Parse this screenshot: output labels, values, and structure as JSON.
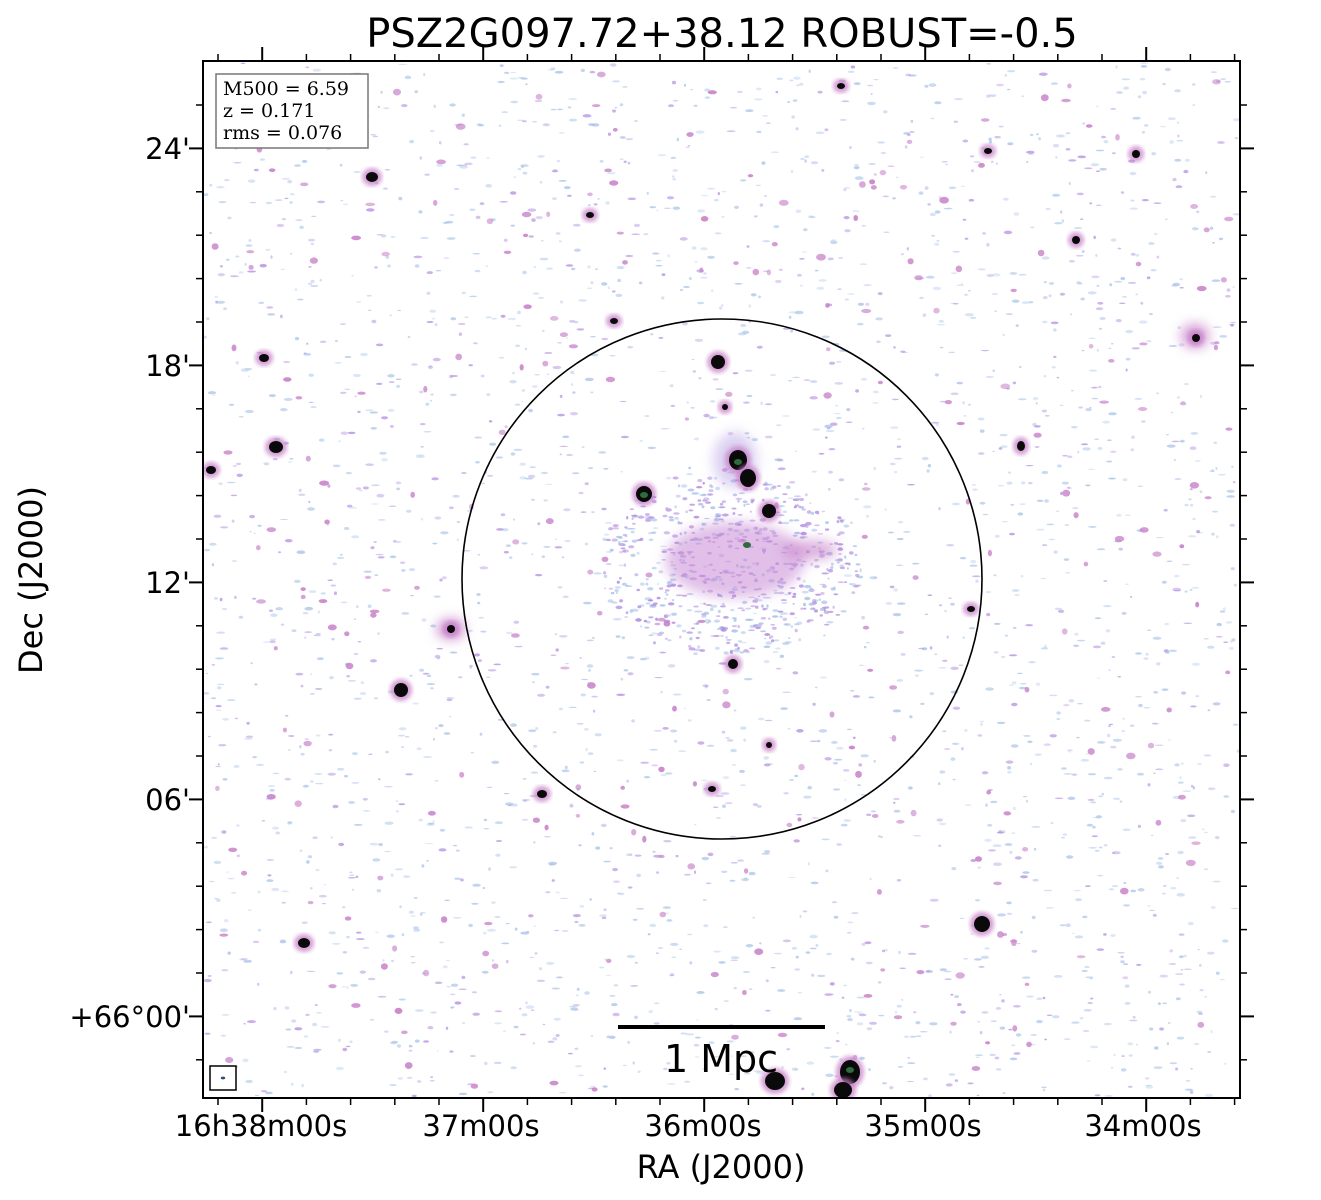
{
  "title": "PSZ2G097.72+38.12 ROBUST=-0.5",
  "info_box": {
    "m500": "M500 = 6.59",
    "z": "z = 0.171",
    "rms": "rms = 0.076"
  },
  "axes": {
    "xlabel": "RA (J2000)",
    "ylabel": "Dec (J2000)",
    "x_ticks": [
      "16h38m00s",
      "37m00s",
      "36m00s",
      "35m00s",
      "34m00s"
    ],
    "y_ticks": [
      "24'",
      "18'",
      "12'",
      "06'",
      "+66°00'"
    ]
  },
  "scale_bar": {
    "label": "1 Mpc"
  },
  "colors": {
    "noise": "#a9c3e8",
    "emission": "#c77fc8",
    "diffuse": "#b38fe0",
    "source": "#0a0a0a",
    "core": "#2e6b3e"
  }
}
